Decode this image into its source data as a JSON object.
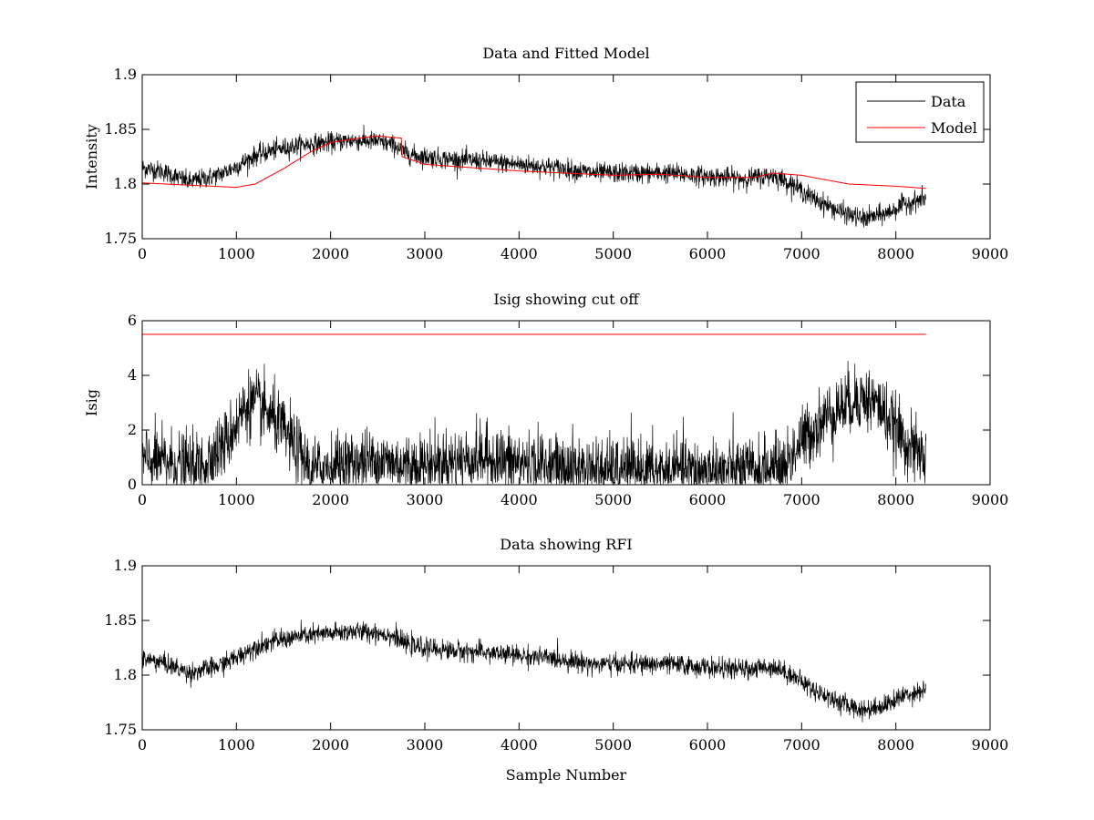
{
  "chart_data": [
    {
      "type": "line",
      "title": "Data and Fitted Model",
      "xlabel": "",
      "ylabel": "Intensity",
      "xlim": [
        0,
        9000
      ],
      "ylim": [
        1.75,
        1.9
      ],
      "xticks": [
        0,
        1000,
        2000,
        3000,
        4000,
        5000,
        6000,
        7000,
        8000,
        9000
      ],
      "yticks": [
        1.75,
        1.8,
        1.85,
        1.9
      ],
      "ytick_labels": [
        "1.75",
        "1.8",
        "1.85",
        "1.9"
      ],
      "grid": false,
      "legend": {
        "position": "top-right",
        "entries": [
          "Data",
          "Model"
        ]
      },
      "series": [
        {
          "name": "Data",
          "color": "#000000",
          "noise": 0.0045,
          "x": [
            0,
            200,
            500,
            800,
            1000,
            1200,
            1400,
            1700,
            2000,
            2200,
            2500,
            2700,
            2750,
            2900,
            3200,
            3600,
            4000,
            4400,
            4800,
            5200,
            5600,
            6000,
            6400,
            6700,
            6900,
            7100,
            7400,
            7650,
            7900,
            8100,
            8320
          ],
          "y": [
            1.815,
            1.812,
            1.802,
            1.808,
            1.816,
            1.826,
            1.831,
            1.836,
            1.838,
            1.84,
            1.839,
            1.835,
            1.83,
            1.826,
            1.823,
            1.821,
            1.818,
            1.815,
            1.81,
            1.81,
            1.81,
            1.807,
            1.805,
            1.808,
            1.8,
            1.788,
            1.775,
            1.768,
            1.773,
            1.782,
            1.787
          ]
        },
        {
          "name": "Model",
          "color": "#ff0000",
          "noise": 0,
          "x": [
            0,
            500,
            1000,
            1200,
            1500,
            1800,
            2000,
            2300,
            2500,
            2750,
            2760,
            3000,
            3500,
            4000,
            4500,
            5000,
            5500,
            6000,
            6500,
            6700,
            7000,
            7500,
            8000,
            8320
          ],
          "y": [
            1.801,
            1.799,
            1.797,
            1.8,
            1.814,
            1.83,
            1.838,
            1.842,
            1.844,
            1.842,
            1.825,
            1.818,
            1.815,
            1.812,
            1.81,
            1.808,
            1.809,
            1.806,
            1.806,
            1.81,
            1.808,
            1.8,
            1.798,
            1.796
          ]
        }
      ]
    },
    {
      "type": "line",
      "title": "Isig showing cut off",
      "xlabel": "",
      "ylabel": "Isig",
      "xlim": [
        0,
        9000
      ],
      "ylim": [
        0,
        6
      ],
      "xticks": [
        0,
        1000,
        2000,
        3000,
        4000,
        5000,
        6000,
        7000,
        8000,
        9000
      ],
      "yticks": [
        0,
        2,
        4,
        6
      ],
      "ytick_labels": [
        "0",
        "2",
        "4",
        "6"
      ],
      "grid": false,
      "series": [
        {
          "name": "Isig",
          "color": "#000000",
          "noise": 0.6,
          "x": [
            0,
            300,
            600,
            900,
            1100,
            1200,
            1400,
            1600,
            1800,
            2000,
            2500,
            2800,
            3200,
            3600,
            4000,
            4500,
            5000,
            5500,
            6000,
            6500,
            6800,
            7000,
            7300,
            7600,
            7800,
            8000,
            8200,
            8320
          ],
          "y": [
            0.9,
            0.8,
            0.6,
            1.6,
            2.9,
            3.0,
            2.4,
            1.5,
            0.5,
            0.7,
            0.9,
            0.7,
            0.8,
            1.0,
            0.8,
            0.6,
            0.5,
            0.5,
            0.5,
            0.5,
            0.6,
            1.6,
            2.6,
            3.2,
            3.0,
            2.0,
            1.2,
            1.0
          ]
        },
        {
          "name": "Cut off",
          "color": "#ff0000",
          "noise": 0,
          "x": [
            0,
            8320
          ],
          "y": [
            5.5,
            5.5
          ]
        }
      ]
    },
    {
      "type": "line",
      "title": "Data showing RFI",
      "xlabel": "Sample Number",
      "ylabel": "",
      "xlim": [
        0,
        9000
      ],
      "ylim": [
        1.75,
        1.9
      ],
      "xticks": [
        0,
        1000,
        2000,
        3000,
        4000,
        5000,
        6000,
        7000,
        8000,
        9000
      ],
      "yticks": [
        1.75,
        1.8,
        1.85,
        1.9
      ],
      "ytick_labels": [
        "1.75",
        "1.8",
        "1.85",
        "1.9"
      ],
      "grid": false,
      "series": [
        {
          "name": "Data",
          "color": "#000000",
          "noise": 0.0045,
          "x": [
            0,
            200,
            500,
            800,
            1000,
            1200,
            1400,
            1700,
            2000,
            2200,
            2500,
            2700,
            2750,
            2900,
            3200,
            3600,
            4000,
            4400,
            4800,
            5200,
            5600,
            6000,
            6400,
            6700,
            6900,
            7100,
            7400,
            7650,
            7900,
            8100,
            8320
          ],
          "y": [
            1.815,
            1.812,
            1.802,
            1.808,
            1.816,
            1.826,
            1.831,
            1.836,
            1.838,
            1.84,
            1.839,
            1.835,
            1.83,
            1.826,
            1.823,
            1.821,
            1.818,
            1.815,
            1.81,
            1.81,
            1.81,
            1.807,
            1.805,
            1.808,
            1.8,
            1.788,
            1.775,
            1.768,
            1.773,
            1.782,
            1.787
          ]
        }
      ]
    }
  ]
}
